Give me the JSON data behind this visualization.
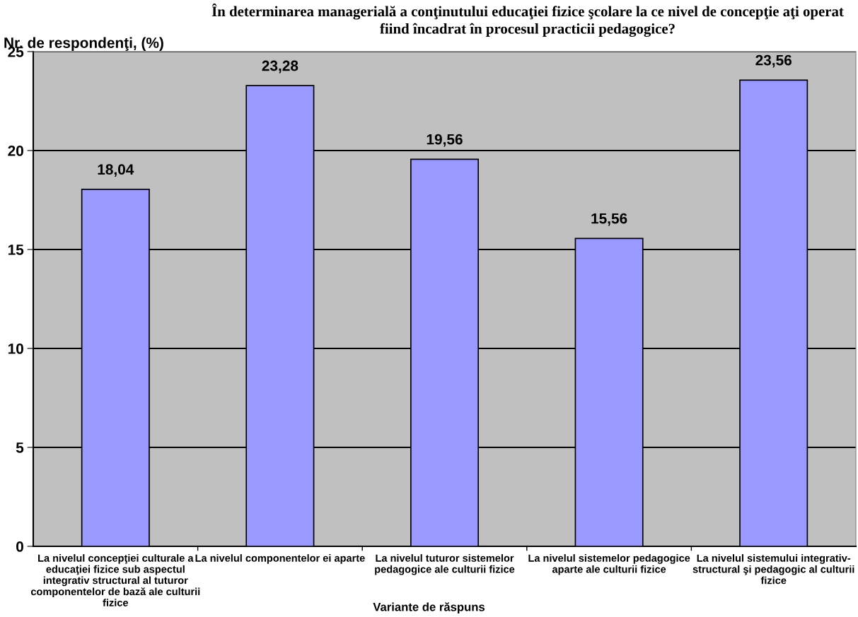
{
  "chart_data": {
    "type": "bar",
    "title": "În determinarea managerială a conţinutului educaţiei fizice şcolare la ce nivel de concepţie aţi operat\nfiind încadrat în procesul practicii pedagogice?",
    "ylabel": "Nr. de respondenţi, (%)",
    "xlabel": "Variante de răspuns",
    "categories": [
      "La nivelul concepţiei culturale a\neducaţiei fizice sub aspectul\nintegrativ structural al tuturor\ncomponentelor de bază ale culturii\nfizice",
      "La nivelul componentelor ei aparte",
      "La nivelul tuturor sistemelor\npedagogice ale culturii fizice",
      "La nivelul sistemelor pedagogice\naparte ale culturii fizice",
      "La nivelul sistemului integrativ-\nstructural şi pedagogic al culturii\nfizice"
    ],
    "values": [
      18.04,
      23.28,
      19.56,
      15.56,
      23.56
    ],
    "value_labels": [
      "18,04",
      "23,28",
      "19,56",
      "15,56",
      "23,56"
    ],
    "color": "#9999ff",
    "ylim": [
      0,
      25
    ],
    "yticks": [
      0,
      5,
      10,
      15,
      20,
      25
    ],
    "grid": "y",
    "legend": false
  }
}
